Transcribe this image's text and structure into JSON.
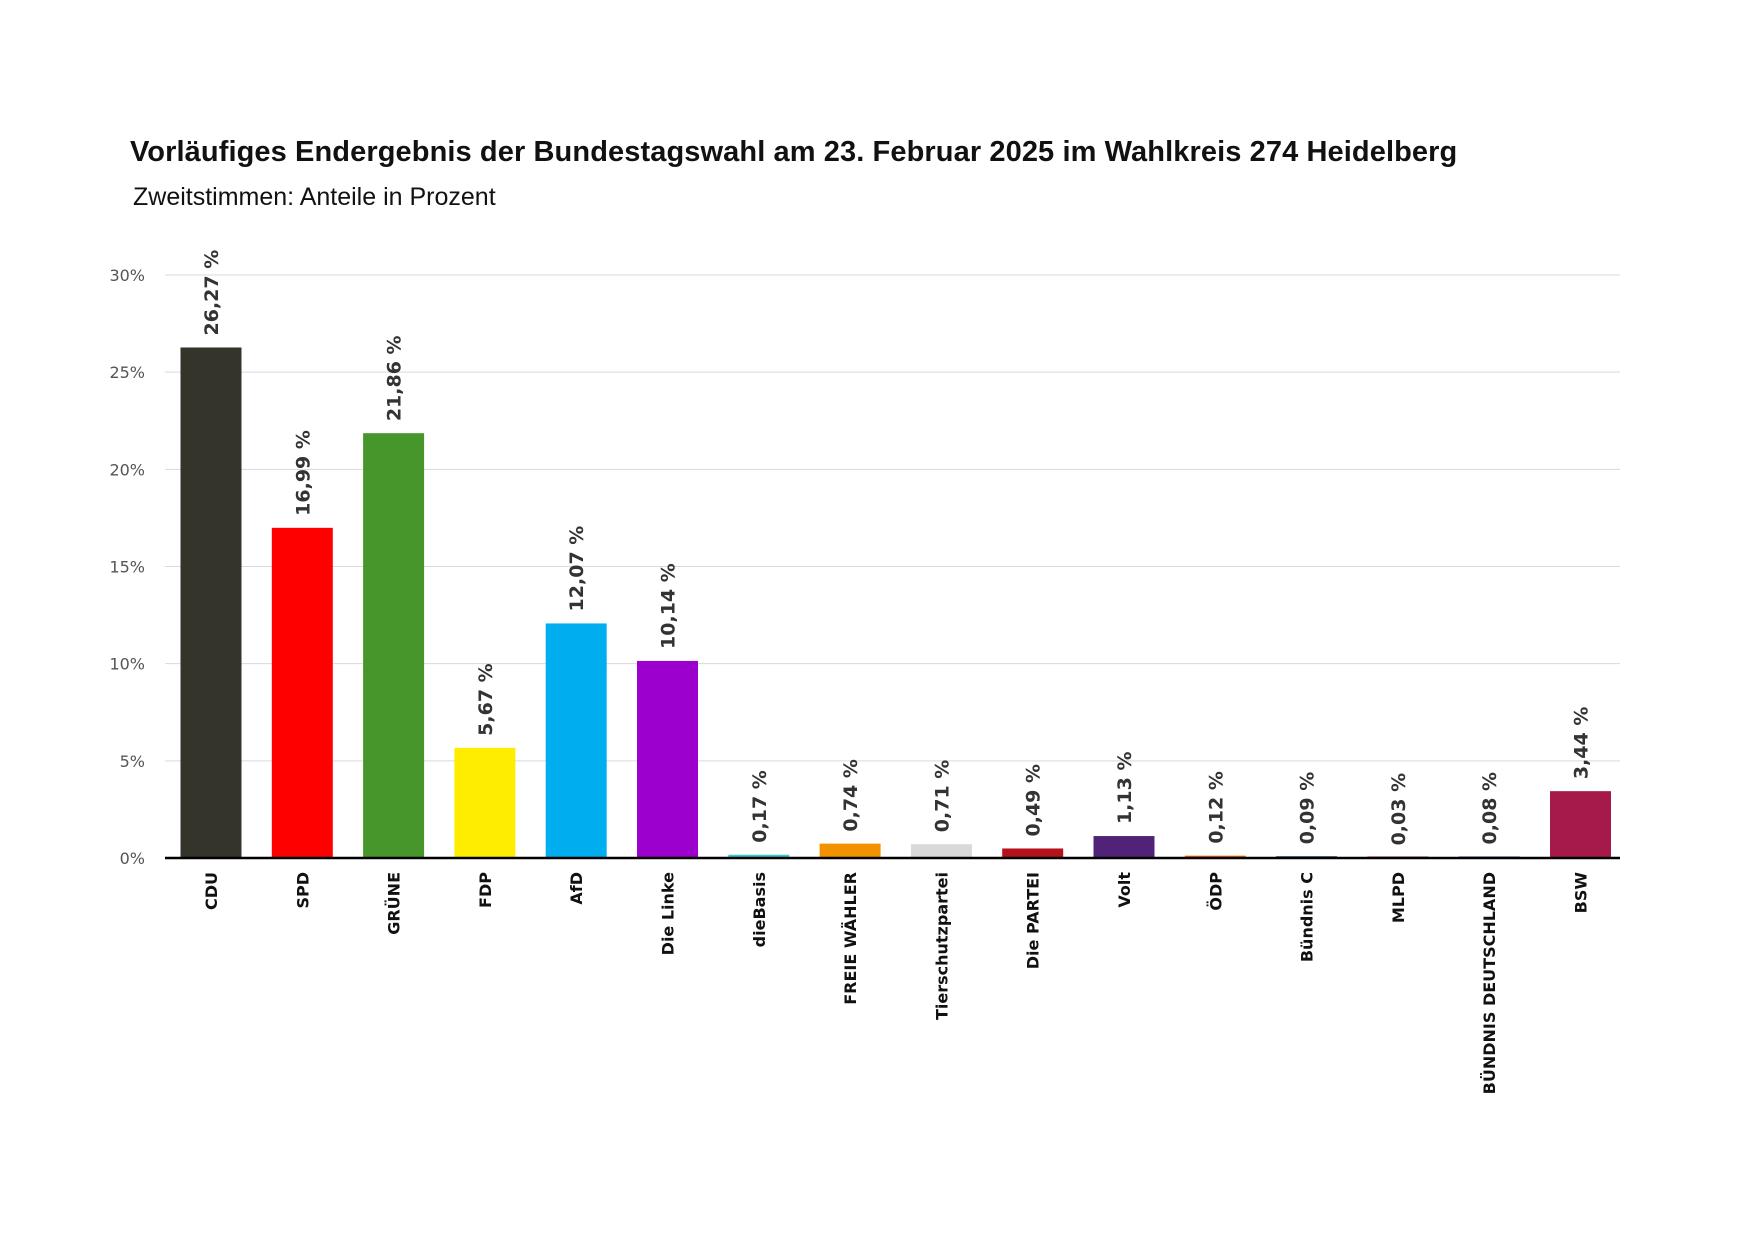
{
  "chart_data": {
    "type": "bar",
    "title": "Vorläufiges Endergebnis der Bundestagswahl am 23. Februar 2025 im Wahlkreis 274 Heidelberg",
    "subtitle": "Zweitstimmen: Anteile in Prozent",
    "xlabel": "",
    "ylabel": "",
    "ylim": [
      0,
      30
    ],
    "yticks": [
      0,
      5,
      10,
      15,
      20,
      25,
      30
    ],
    "ytick_labels": [
      "0%",
      "5%",
      "10%",
      "15%",
      "20%",
      "25%",
      "30%"
    ],
    "grid": true,
    "categories": [
      "CDU",
      "SPD",
      "GRÜNE",
      "FDP",
      "AfD",
      "Die Linke",
      "dieBasis",
      "FREIE WÄHLER",
      "Tierschutzpartei",
      "Die PARTEI",
      "Volt",
      "ÖDP",
      "Bündnis C",
      "MLPD",
      "BÜNDNIS DEUTSCHLAND",
      "BSW"
    ],
    "values": [
      26.27,
      16.99,
      21.86,
      5.67,
      12.07,
      10.14,
      0.17,
      0.74,
      0.71,
      0.49,
      1.13,
      0.12,
      0.09,
      0.03,
      0.08,
      3.44
    ],
    "data_labels": [
      "26,27 %",
      "16,99 %",
      "21,86 %",
      "5,67 %",
      "12,07 %",
      "10,14 %",
      "0,17 %",
      "0,74 %",
      "0,71 %",
      "0,49 %",
      "1,13 %",
      "0,12 %",
      "0,09 %",
      "0,03 %",
      "0,08 %",
      "3,44 %"
    ],
    "colors": [
      "#34342b",
      "#ff0000",
      "#46962b",
      "#ffed00",
      "#00aeef",
      "#9b00cc",
      "#3ec6d1",
      "#f39200",
      "#d9d9d9",
      "#b5121b",
      "#502379",
      "#ff6400",
      "#123c6e",
      "#cc0000",
      "#2a5b9a",
      "#a51a4a"
    ]
  }
}
